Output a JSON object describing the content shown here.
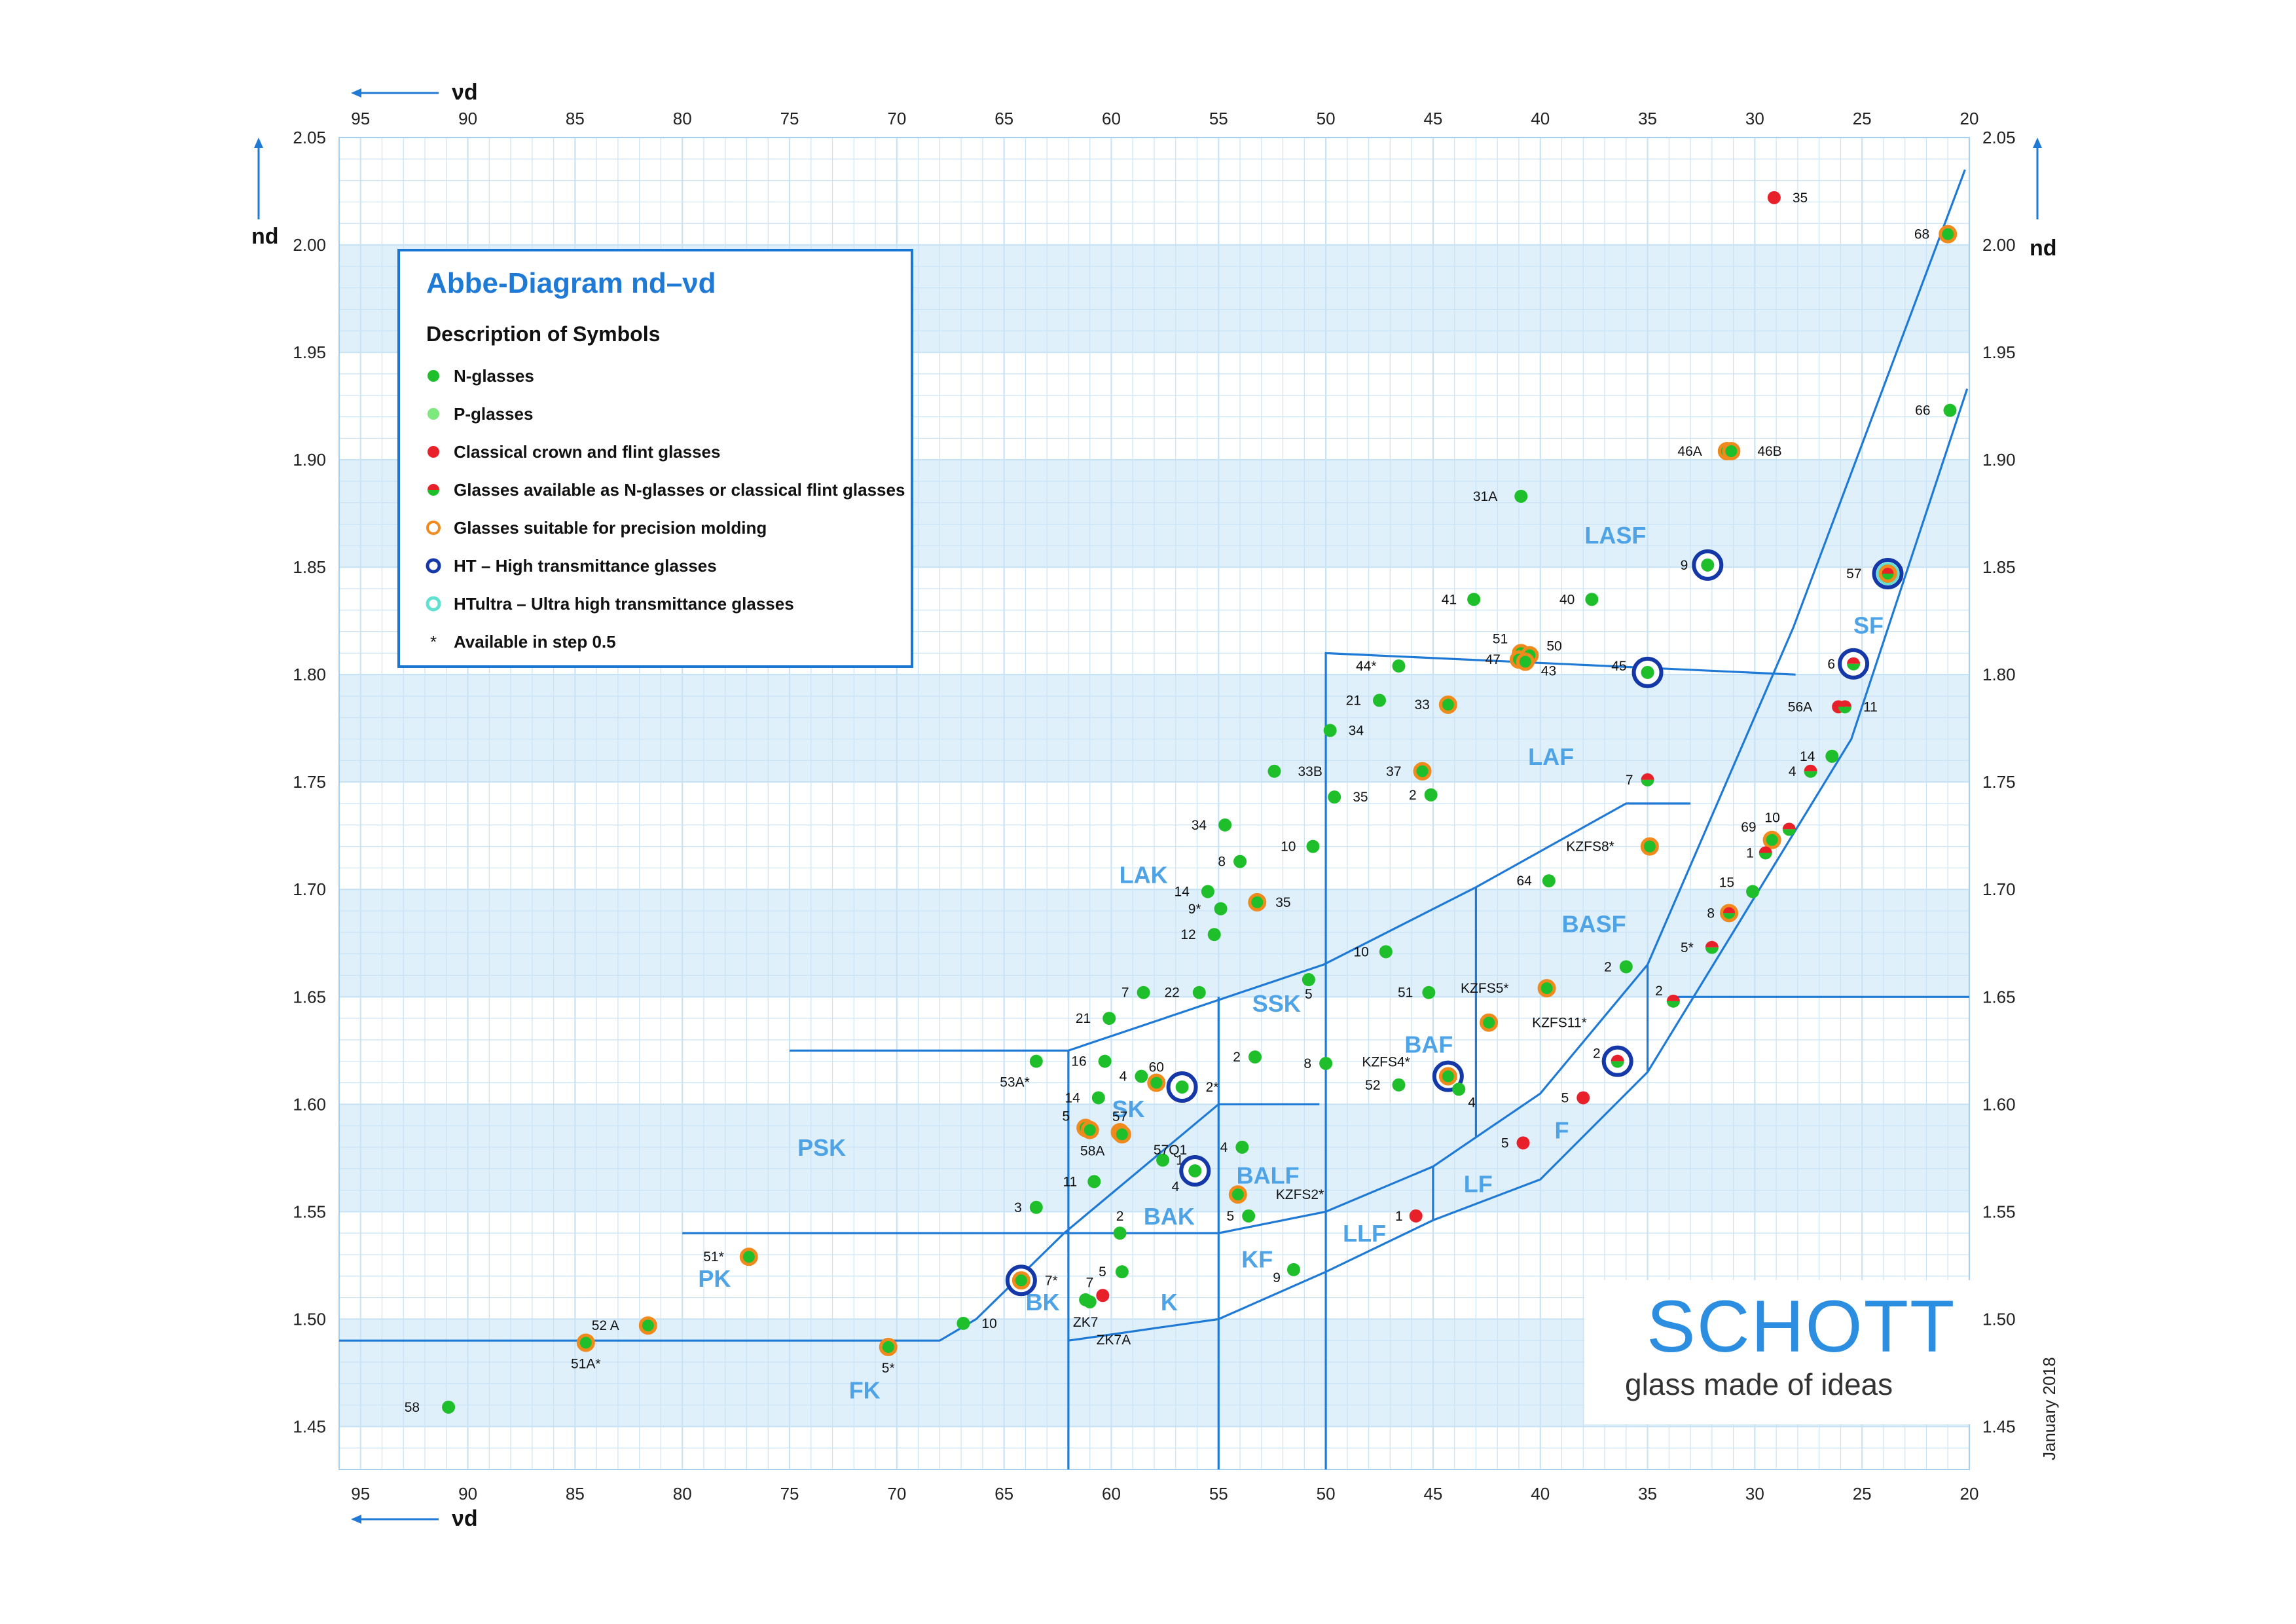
{
  "chart_data": {
    "type": "scatter",
    "title": "Abbe-Diagram nd–νd",
    "xlabel": "νd",
    "ylabel": "nd",
    "xlim": [
      96,
      20
    ],
    "ylim": [
      1.43,
      2.05
    ],
    "x_ticks": [
      95,
      90,
      85,
      80,
      75,
      70,
      65,
      60,
      55,
      50,
      45,
      40,
      35,
      30,
      25,
      20
    ],
    "y_ticks": [
      1.45,
      1.5,
      1.55,
      1.6,
      1.65,
      1.7,
      1.75,
      1.8,
      1.85,
      1.9,
      1.95,
      2.0,
      2.05
    ],
    "grid": true,
    "bands": [
      [
        1.45,
        1.5
      ],
      [
        1.55,
        1.6
      ],
      [
        1.65,
        1.7
      ],
      [
        1.75,
        1.8
      ],
      [
        1.85,
        1.9
      ],
      [
        1.95,
        2.0
      ]
    ],
    "colors": {
      "n_glass": "#1fbf2b",
      "p_glass": "#7fe87f",
      "classical": "#e8202a",
      "molding_ring": "#f08a1c",
      "ht_ring": "#1438a8",
      "htultra_ring": "#5fe0d0",
      "region_line": "#1f7ad6",
      "grid": "#c9e3f6",
      "band": "#dff0fb",
      "region_text": "#4da3e6"
    },
    "legend": {
      "title": "Abbe-Diagram nd–νd",
      "subtitle": "Description of Symbols",
      "items": [
        {
          "symbol": "n",
          "label": "N-glasses"
        },
        {
          "symbol": "p",
          "label": "P-glasses"
        },
        {
          "symbol": "c",
          "label": "Classical crown and flint glasses"
        },
        {
          "symbol": "nc",
          "label": "Glasses available as N-glasses or classical flint glasses"
        },
        {
          "symbol": "mold",
          "label": "Glasses suitable for precision molding"
        },
        {
          "symbol": "ht",
          "label": "HT – High transmittance glasses"
        },
        {
          "symbol": "htu",
          "label": "HTultra – Ultra high transmittance glasses"
        },
        {
          "symbol": "star",
          "label": "Available in step 0.5"
        }
      ]
    },
    "regions": [
      {
        "label": "FK",
        "x": 71.5,
        "y": 1.467
      },
      {
        "label": "PK",
        "x": 78.5,
        "y": 1.519
      },
      {
        "label": "PSK",
        "x": 73.5,
        "y": 1.58
      },
      {
        "label": "BK",
        "x": 63.2,
        "y": 1.508
      },
      {
        "label": "K",
        "x": 57.3,
        "y": 1.508
      },
      {
        "label": "BAK",
        "x": 57.3,
        "y": 1.548
      },
      {
        "label": "SK",
        "x": 59.2,
        "y": 1.598
      },
      {
        "label": "BALF",
        "x": 52.7,
        "y": 1.567
      },
      {
        "label": "KF",
        "x": 53.2,
        "y": 1.528
      },
      {
        "label": "LLF",
        "x": 48.2,
        "y": 1.54
      },
      {
        "label": "LF",
        "x": 42.9,
        "y": 1.563
      },
      {
        "label": "F",
        "x": 39.0,
        "y": 1.588
      },
      {
        "label": "BAF",
        "x": 45.2,
        "y": 1.628
      },
      {
        "label": "SSK",
        "x": 52.3,
        "y": 1.647
      },
      {
        "label": "LAK",
        "x": 58.5,
        "y": 1.707
      },
      {
        "label": "BASF",
        "x": 37.5,
        "y": 1.684
      },
      {
        "label": "LAF",
        "x": 39.5,
        "y": 1.762
      },
      {
        "label": "LASF",
        "x": 36.5,
        "y": 1.865
      },
      {
        "label": "SF",
        "x": 24.7,
        "y": 1.823
      }
    ],
    "points": [
      {
        "name": "58",
        "x": 90.9,
        "y": 1.459,
        "type": "n",
        "lx": -44,
        "ly": 0
      },
      {
        "name": "51A*",
        "x": 84.5,
        "y": 1.489,
        "type": "n",
        "mold": true,
        "lx": 0,
        "ly": 32
      },
      {
        "name": "52 A",
        "x": 81.6,
        "y": 1.497,
        "type": "n",
        "mold": true,
        "lx": -44,
        "ly": 0
      },
      {
        "name": "51*",
        "x": 76.9,
        "y": 1.529,
        "type": "n",
        "mold": true,
        "lx": -38,
        "ly": 0
      },
      {
        "name": "5*",
        "x": 70.4,
        "y": 1.487,
        "type": "n",
        "mold": true,
        "lx": 0,
        "ly": 32
      },
      {
        "name": "10",
        "x": 66.9,
        "y": 1.498,
        "type": "n",
        "lx": 28,
        "ly": 0
      },
      {
        "name": "7*",
        "x": 64.2,
        "y": 1.518,
        "type": "n",
        "mold": true,
        "ht": true,
        "lx": 36,
        "ly": 0
      },
      {
        "name": "3",
        "x": 63.5,
        "y": 1.552,
        "type": "n",
        "lx": -22,
        "ly": 0
      },
      {
        "name": "53A*",
        "x": 63.5,
        "y": 1.62,
        "type": "n",
        "lx": -10,
        "ly": 32
      },
      {
        "name": "ZK7",
        "x": 61.2,
        "y": 1.509,
        "type": "n",
        "lx": 0,
        "ly": 34
      },
      {
        "name": "ZK7A",
        "x": 61.0,
        "y": 1.508,
        "type": "n",
        "lx": 10,
        "ly": 58
      },
      {
        "name": "7",
        "x": 60.4,
        "y": 1.511,
        "type": "c",
        "lx": -14,
        "ly": -20
      },
      {
        "name": "11",
        "x": 60.8,
        "y": 1.564,
        "type": "n",
        "lx": -26,
        "ly": 0
      },
      {
        "name": "14",
        "x": 60.6,
        "y": 1.603,
        "type": "n",
        "lx": -28,
        "ly": 0
      },
      {
        "name": "5",
        "x": 61.2,
        "y": 1.589,
        "type": "n",
        "mold": true,
        "lx": -24,
        "ly": -18
      },
      {
        "name": "58A",
        "x": 61.0,
        "y": 1.588,
        "type": "n",
        "mold": true,
        "lx": 4,
        "ly": 32
      },
      {
        "name": "16",
        "x": 60.3,
        "y": 1.62,
        "type": "n",
        "lx": -28,
        "ly": 0
      },
      {
        "name": "21",
        "x": 60.1,
        "y": 1.64,
        "type": "n",
        "lx": -28,
        "ly": 0
      },
      {
        "name": "7",
        "x": 58.5,
        "y": 1.652,
        "type": "n",
        "lx": -22,
        "ly": 0
      },
      {
        "name": "2",
        "x": 59.6,
        "y": 1.54,
        "type": "n",
        "lx": 0,
        "ly": -26
      },
      {
        "name": "5",
        "x": 59.5,
        "y": 1.522,
        "type": "n",
        "lx": -24,
        "ly": 0
      },
      {
        "name": "1",
        "x": 57.6,
        "y": 1.574,
        "type": "n",
        "lx": 20,
        "ly": 0
      },
      {
        "name": "57",
        "x": 59.6,
        "y": 1.587,
        "type": "n",
        "mold": true,
        "lx": 0,
        "ly": -24
      },
      {
        "name": "57Q1",
        "x": 59.5,
        "y": 1.586,
        "type": "n",
        "mold": true,
        "lx": 48,
        "ly": 24
      },
      {
        "name": "4",
        "x": 58.6,
        "y": 1.613,
        "type": "n",
        "lx": -22,
        "ly": 0
      },
      {
        "name": "60",
        "x": 57.9,
        "y": 1.61,
        "type": "n",
        "mold": true,
        "lx": 0,
        "ly": -24
      },
      {
        "name": "2*",
        "x": 56.7,
        "y": 1.608,
        "type": "n",
        "ht": true,
        "lx": 36,
        "ly": 0
      },
      {
        "name": "4",
        "x": 56.1,
        "y": 1.569,
        "type": "n",
        "ht": true,
        "lx": -24,
        "ly": 24
      },
      {
        "name": "22",
        "x": 55.9,
        "y": 1.652,
        "type": "n",
        "lx": -30,
        "ly": 0
      },
      {
        "name": "14",
        "x": 55.5,
        "y": 1.699,
        "type": "n",
        "lx": -28,
        "ly": 0
      },
      {
        "name": "9*",
        "x": 54.9,
        "y": 1.691,
        "type": "n",
        "lx": -30,
        "ly": 0
      },
      {
        "name": "12",
        "x": 55.2,
        "y": 1.679,
        "type": "n",
        "lx": -28,
        "ly": 0
      },
      {
        "name": "8",
        "x": 54.0,
        "y": 1.713,
        "type": "n",
        "lx": -22,
        "ly": 0
      },
      {
        "name": "34",
        "x": 54.7,
        "y": 1.73,
        "type": "n",
        "lx": -28,
        "ly": 0
      },
      {
        "name": "4",
        "x": 53.9,
        "y": 1.58,
        "type": "n",
        "lx": -22,
        "ly": 0
      },
      {
        "name": "KZFS2*",
        "x": 54.1,
        "y": 1.558,
        "type": "n",
        "mold": true,
        "lx": 58,
        "ly": 0
      },
      {
        "name": "5",
        "x": 53.6,
        "y": 1.548,
        "type": "n",
        "lx": -22,
        "ly": 0
      },
      {
        "name": "35",
        "x": 53.2,
        "y": 1.694,
        "type": "n",
        "mold": true,
        "lx": 28,
        "ly": 0
      },
      {
        "name": "2",
        "x": 53.3,
        "y": 1.622,
        "type": "n",
        "lx": -22,
        "ly": 0
      },
      {
        "name": "33B",
        "x": 52.4,
        "y": 1.755,
        "type": "n",
        "lx": 36,
        "ly": 0
      },
      {
        "name": "9",
        "x": 51.5,
        "y": 1.523,
        "type": "n",
        "lx": -20,
        "ly": 12
      },
      {
        "name": "5",
        "x": 50.8,
        "y": 1.658,
        "type": "n",
        "lx": 0,
        "ly": 22
      },
      {
        "name": "10",
        "x": 50.6,
        "y": 1.72,
        "type": "n",
        "lx": -26,
        "ly": 0
      },
      {
        "name": "8",
        "x": 50.0,
        "y": 1.619,
        "type": "n",
        "lx": -22,
        "ly": 0
      },
      {
        "name": "34",
        "x": 49.8,
        "y": 1.774,
        "type": "n",
        "lx": 28,
        "ly": 0
      },
      {
        "name": "35",
        "x": 49.6,
        "y": 1.743,
        "type": "n",
        "lx": 28,
        "ly": 0
      },
      {
        "name": "10",
        "x": 47.2,
        "y": 1.671,
        "type": "n",
        "lx": -26,
        "ly": 0
      },
      {
        "name": "21",
        "x": 47.5,
        "y": 1.788,
        "type": "n",
        "lx": -28,
        "ly": 0
      },
      {
        "name": "44*",
        "x": 46.6,
        "y": 1.804,
        "type": "n",
        "lx": -34,
        "ly": 0
      },
      {
        "name": "52",
        "x": 46.6,
        "y": 1.609,
        "type": "n",
        "lx": -28,
        "ly": 0
      },
      {
        "name": "37",
        "x": 45.5,
        "y": 1.755,
        "type": "n",
        "mold": true,
        "lx": -32,
        "ly": 0
      },
      {
        "name": "2",
        "x": 45.1,
        "y": 1.744,
        "type": "n",
        "lx": -22,
        "ly": 0
      },
      {
        "name": "51",
        "x": 45.2,
        "y": 1.652,
        "type": "n",
        "lx": -24,
        "ly": 0
      },
      {
        "name": "KZFS4*",
        "x": 44.3,
        "y": 1.613,
        "type": "n",
        "mold": true,
        "ht": true,
        "lx": -58,
        "ly": -22
      },
      {
        "name": "33",
        "x": 44.3,
        "y": 1.786,
        "type": "n",
        "mold": true,
        "lx": -28,
        "ly": 0
      },
      {
        "name": "4",
        "x": 43.8,
        "y": 1.607,
        "type": "n",
        "lx": 14,
        "ly": 20
      },
      {
        "name": "41",
        "x": 43.1,
        "y": 1.835,
        "type": "n",
        "lx": -26,
        "ly": 0
      },
      {
        "name": "KZFS11*",
        "x": 42.4,
        "y": 1.638,
        "type": "n",
        "mold": true,
        "lx": 66,
        "ly": 0
      },
      {
        "name": "1",
        "x": 45.8,
        "y": 1.548,
        "type": "c",
        "lx": -20,
        "ly": 0
      },
      {
        "name": "31A",
        "x": 40.9,
        "y": 1.883,
        "type": "n",
        "lx": -36,
        "ly": 0
      },
      {
        "name": "51",
        "x": 40.9,
        "y": 1.81,
        "type": "n",
        "mold": true,
        "lx": -20,
        "ly": -22
      },
      {
        "name": "50",
        "x": 40.5,
        "y": 1.809,
        "type": "n",
        "mold": true,
        "lx": 26,
        "ly": -14
      },
      {
        "name": "47",
        "x": 41.0,
        "y": 1.807,
        "type": "n",
        "mold": true,
        "lx": -28,
        "ly": 0
      },
      {
        "name": "43",
        "x": 40.7,
        "y": 1.806,
        "type": "n",
        "mold": true,
        "lx": 24,
        "ly": 14
      },
      {
        "name": "5",
        "x": 40.8,
        "y": 1.582,
        "type": "c",
        "lx": -22,
        "ly": 0
      },
      {
        "name": "KZFS5*",
        "x": 39.7,
        "y": 1.654,
        "type": "n",
        "mold": true,
        "lx": -58,
        "ly": 0
      },
      {
        "name": "64",
        "x": 39.6,
        "y": 1.704,
        "type": "n",
        "lx": -26,
        "ly": 0
      },
      {
        "name": "5",
        "x": 38.0,
        "y": 1.603,
        "type": "c",
        "lx": -22,
        "ly": 0
      },
      {
        "name": "40",
        "x": 37.6,
        "y": 1.835,
        "type": "n",
        "lx": -26,
        "ly": 0
      },
      {
        "name": "2",
        "x": 36.0,
        "y": 1.664,
        "type": "n",
        "lx": -22,
        "ly": 0
      },
      {
        "name": "2",
        "x": 36.4,
        "y": 1.62,
        "type": "nc",
        "ht": true,
        "lx": -26,
        "ly": -12
      },
      {
        "name": "KZFS8*",
        "x": 34.9,
        "y": 1.72,
        "type": "n",
        "mold": true,
        "lx": -54,
        "ly": 0
      },
      {
        "name": "45",
        "x": 35.0,
        "y": 1.801,
        "type": "n",
        "ht": true,
        "lx": -32,
        "ly": -10
      },
      {
        "name": "7",
        "x": 35.0,
        "y": 1.751,
        "type": "nc",
        "lx": -22,
        "ly": 0
      },
      {
        "name": "2",
        "x": 33.8,
        "y": 1.648,
        "type": "nc",
        "lx": -16,
        "ly": -16
      },
      {
        "name": "9",
        "x": 32.2,
        "y": 1.851,
        "type": "n",
        "ht": true,
        "lx": -30,
        "ly": 0
      },
      {
        "name": "5*",
        "x": 32.0,
        "y": 1.673,
        "type": "nc",
        "lx": -28,
        "ly": 0
      },
      {
        "name": "35",
        "x": 29.1,
        "y": 2.022,
        "type": "c",
        "lx": 28,
        "ly": 0
      },
      {
        "name": "46A",
        "x": 31.3,
        "y": 1.904,
        "type": "n",
        "mold": true,
        "lx": -38,
        "ly": 0
      },
      {
        "name": "46B",
        "x": 31.1,
        "y": 1.904,
        "type": "n",
        "mold": true,
        "lx": 40,
        "ly": 0
      },
      {
        "name": "8",
        "x": 31.2,
        "y": 1.689,
        "type": "nc",
        "mold": true,
        "lx": -22,
        "ly": 0
      },
      {
        "name": "15",
        "x": 30.1,
        "y": 1.699,
        "type": "n",
        "lx": -28,
        "ly": -14
      },
      {
        "name": "69",
        "x": 29.2,
        "y": 1.723,
        "type": "n",
        "mold": true,
        "lx": -24,
        "ly": -20
      },
      {
        "name": "1",
        "x": 29.5,
        "y": 1.717,
        "type": "nc",
        "lx": -18,
        "ly": 0
      },
      {
        "name": "10",
        "x": 28.4,
        "y": 1.728,
        "type": "nc",
        "lx": -14,
        "ly": -18
      },
      {
        "name": "4",
        "x": 27.4,
        "y": 1.755,
        "type": "nc",
        "lx": -22,
        "ly": 0
      },
      {
        "name": "14",
        "x": 26.4,
        "y": 1.762,
        "type": "n",
        "lx": -26,
        "ly": 0
      },
      {
        "name": "56A",
        "x": 26.1,
        "y": 1.785,
        "type": "c",
        "lx": -40,
        "ly": 0
      },
      {
        "name": "11",
        "x": 25.8,
        "y": 1.785,
        "type": "nc",
        "lx": 28,
        "ly": 0
      },
      {
        "name": "6",
        "x": 25.4,
        "y": 1.805,
        "type": "nc",
        "ht": true,
        "lx": -28,
        "ly": 0
      },
      {
        "name": "57",
        "x": 23.8,
        "y": 1.847,
        "type": "nc",
        "mold": true,
        "ht": true,
        "htu": true,
        "lx": -40,
        "ly": 0
      },
      {
        "name": "66",
        "x": 20.9,
        "y": 1.923,
        "type": "n",
        "lx": -30,
        "ly": 0
      },
      {
        "name": "68",
        "x": 21.0,
        "y": 2.005,
        "type": "n",
        "mold": true,
        "lx": -28,
        "ly": 0
      }
    ],
    "boundaries": [
      [
        [
          96,
          1.49
        ],
        [
          68,
          1.49
        ],
        [
          66.3,
          1.5
        ],
        [
          62.2,
          1.54
        ],
        [
          55,
          1.6
        ],
        [
          50.3,
          1.6
        ]
      ],
      [
        [
          62,
          1.43
        ],
        [
          62,
          1.625
        ]
      ],
      [
        [
          55,
          1.43
        ],
        [
          55,
          1.65
        ]
      ],
      [
        [
          75,
          1.625
        ],
        [
          62,
          1.625
        ],
        [
          50.1,
          1.665
        ],
        [
          43,
          1.701
        ],
        [
          36,
          1.74
        ],
        [
          33,
          1.74
        ]
      ],
      [
        [
          80,
          1.54
        ],
        [
          55,
          1.54
        ],
        [
          50,
          1.55
        ],
        [
          45,
          1.571
        ],
        [
          40,
          1.605
        ],
        [
          35,
          1.665
        ],
        [
          28.2,
          1.822
        ],
        [
          20.2,
          2.035
        ]
      ],
      [
        [
          62,
          1.49
        ],
        [
          55,
          1.5
        ],
        [
          50,
          1.522
        ],
        [
          45,
          1.546
        ],
        [
          40,
          1.565
        ],
        [
          35,
          1.615
        ],
        [
          25.5,
          1.77
        ],
        [
          20.1,
          1.933
        ]
      ],
      [
        [
          50,
          1.43
        ],
        [
          50,
          1.81
        ],
        [
          28.1,
          1.8
        ]
      ],
      [
        [
          43,
          1.585
        ],
        [
          43,
          1.701
        ]
      ],
      [
        [
          45,
          1.546
        ],
        [
          45,
          1.571
        ]
      ],
      [
        [
          35,
          1.615
        ],
        [
          35,
          1.665
        ]
      ],
      [
        [
          33.6,
          1.65
        ],
        [
          20,
          1.65
        ]
      ]
    ]
  },
  "axis_labels": {
    "x_top": "νd",
    "x_bottom": "νd",
    "y_left": "nd",
    "y_right": "nd"
  },
  "branding": {
    "brand": "SCHOTT",
    "tagline": "glass made of ideas",
    "date": "January 2018"
  }
}
